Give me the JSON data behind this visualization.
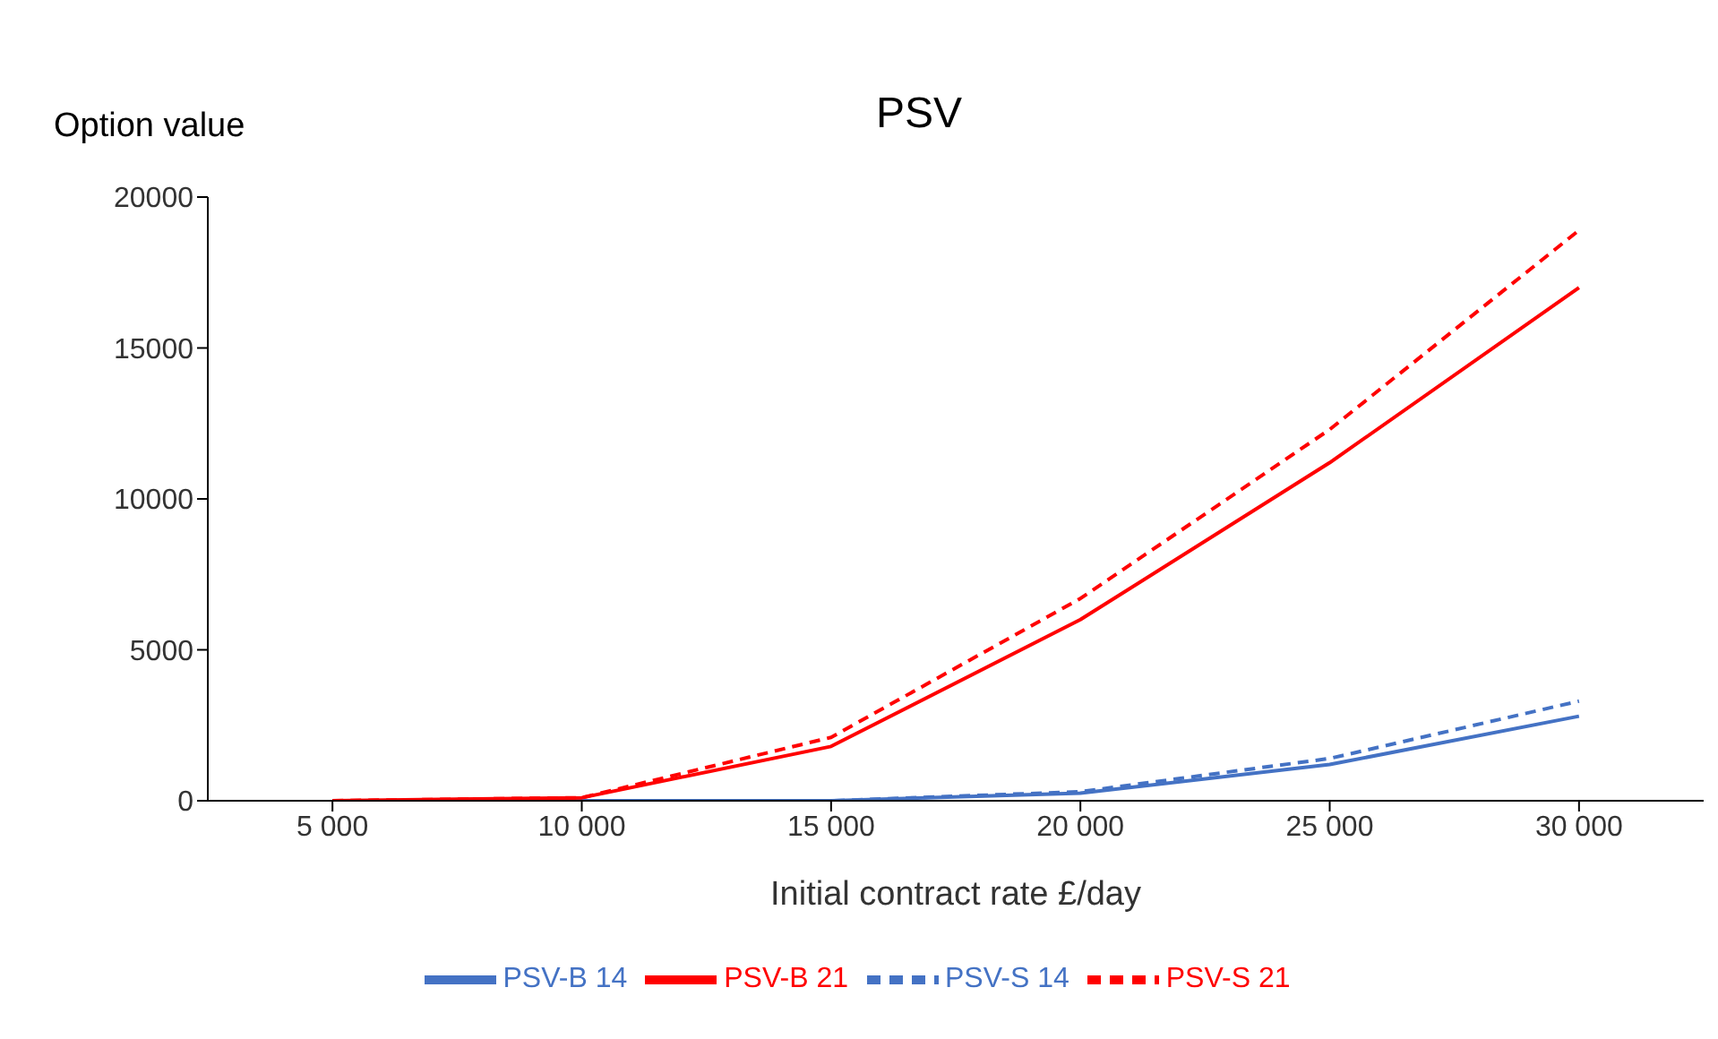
{
  "chart_data": {
    "type": "line",
    "title": "PSV",
    "ylabel": "Option value",
    "xlabel": "Initial contract rate £/day",
    "categories": [
      "5 000",
      "10 000",
      "15 000",
      "20 000",
      "25 000",
      "30 000"
    ],
    "series": [
      {
        "name": "PSV-S 14",
        "color": "#4472c4",
        "line_style": "dashed",
        "values": [
          0,
          0,
          0,
          300,
          1400,
          3300
        ]
      },
      {
        "name": "PSV-B 14",
        "color": "#4472c4",
        "line_style": "solid",
        "values": [
          0,
          0,
          0,
          250,
          1200,
          2800
        ]
      },
      {
        "name": "PSV-S 21",
        "color": "#ff0000",
        "line_style": "dashed",
        "values": [
          0,
          100,
          2100,
          6700,
          12300,
          18900
        ]
      },
      {
        "name": "PSV-B 21",
        "color": "#ff0000",
        "line_style": "solid",
        "values": [
          0,
          100,
          1800,
          6000,
          11200,
          17000
        ]
      }
    ],
    "ylim": [
      0,
      20000
    ],
    "yticks": [
      0,
      5000,
      10000,
      15000,
      20000
    ],
    "grid": false,
    "legend": "bottom",
    "marker": "none"
  }
}
